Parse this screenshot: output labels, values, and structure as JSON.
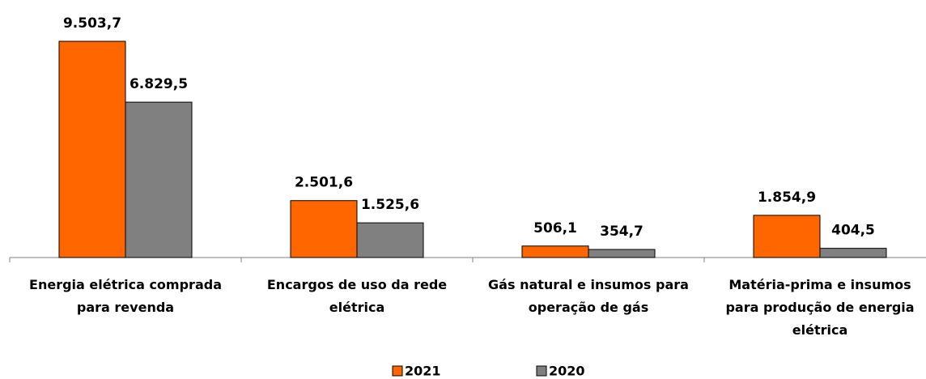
{
  "chart_data": {
    "type": "bar",
    "categories": [
      "Energia elétrica comprada para revenda",
      "Encargos de uso da rede elétrica",
      "Gás natural e insumos para operação de gás",
      "Matéria-prima e insumos para produção de energia elétrica"
    ],
    "series": [
      {
        "name": "2021",
        "color": "#ff6600",
        "values": [
          9503.7,
          2501.6,
          506.1,
          1854.9
        ],
        "value_labels": [
          "9.503,7",
          "2.501,6",
          "506,1",
          "1.854,9"
        ]
      },
      {
        "name": "2020",
        "color": "#808080",
        "values": [
          6829.5,
          1525.6,
          354.7,
          404.5
        ],
        "value_labels": [
          "6.829,5",
          "1.525,6",
          "354,7",
          "404,5"
        ]
      }
    ],
    "legend": "bottom"
  }
}
